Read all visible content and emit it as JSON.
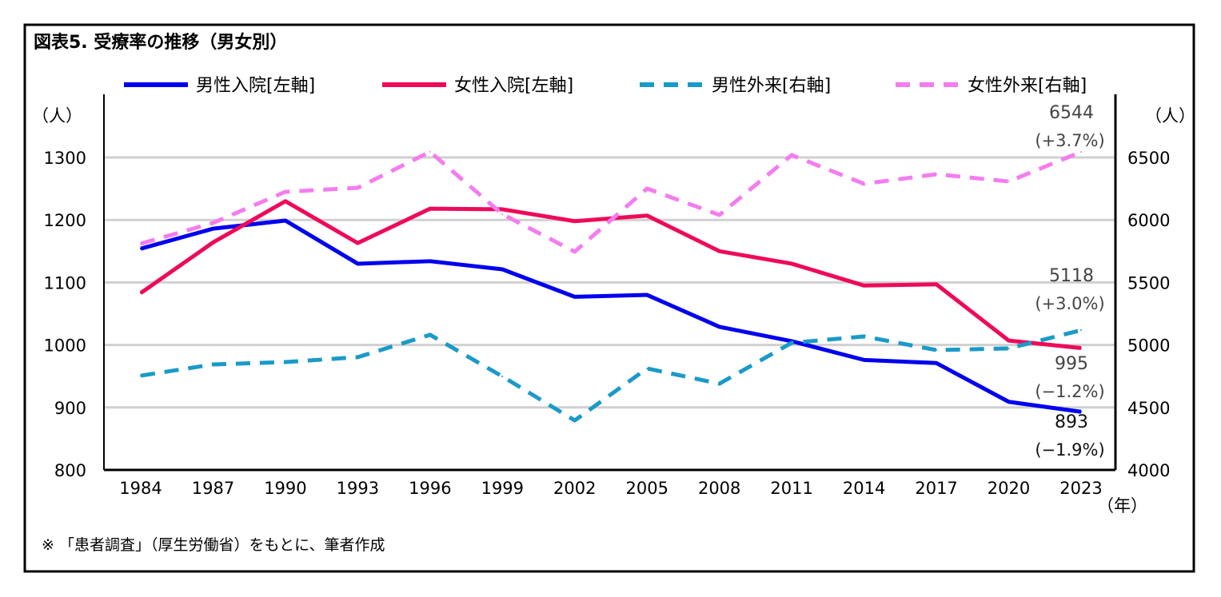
{
  "title": "図表5. 受療率の推移（男女別）",
  "note": "※ 「患者調査」（厚生労働省）をもとに、筆者作成",
  "chart_data": {
    "type": "line",
    "x": [
      "1984",
      "1987",
      "1990",
      "1993",
      "1996",
      "1999",
      "2002",
      "2005",
      "2008",
      "2011",
      "2014",
      "2017",
      "2020",
      "2023"
    ],
    "xlabel_unit": "（年）",
    "ylabel_left": "（人）",
    "ylabel_right": "（人）",
    "ylim_left": [
      800,
      1300
    ],
    "yticks_left": [
      800,
      900,
      1000,
      1100,
      1200,
      1300
    ],
    "ylim_right": [
      4000,
      6500
    ],
    "yticks_right": [
      4000,
      4500,
      5000,
      5500,
      6000,
      6500
    ],
    "grid": true,
    "legend_position": "top",
    "series": [
      {
        "name": "男性入院[左軸]",
        "axis": "left",
        "color": "#0000ee",
        "dashed": false,
        "values": [
          1154,
          1186,
          1199,
          1130,
          1134,
          1121,
          1077,
          1080,
          1029,
          1006,
          976,
          971,
          909,
          893
        ],
        "end_label": "893",
        "end_change": "(−1.9%)"
      },
      {
        "name": "女性入院[左軸]",
        "axis": "left",
        "color": "#ee0a5a",
        "dashed": false,
        "values": [
          1083,
          1164,
          1230,
          1163,
          1218,
          1217,
          1198,
          1207,
          1150,
          1130,
          1095,
          1097,
          1007,
          995
        ],
        "end_label": "995",
        "end_change": "(−1.2%)"
      },
      {
        "name": "男性外来[右軸]",
        "axis": "right",
        "color": "#1a9ac8",
        "dashed": true,
        "values": [
          4754,
          4844,
          4863,
          4902,
          5081,
          4748,
          4396,
          4812,
          4690,
          5017,
          5068,
          4959,
          4972,
          5118
        ],
        "end_label": "5118",
        "end_change": "(+3.0%)"
      },
      {
        "name": "女性外来[右軸]",
        "axis": "right",
        "color": "#f47cf0",
        "dashed": true,
        "values": [
          5810,
          5976,
          6225,
          6257,
          6545,
          6046,
          5746,
          6251,
          6040,
          6519,
          6289,
          6366,
          6308,
          6544
        ],
        "end_label": "6544",
        "end_change": "(+3.7%)"
      }
    ]
  }
}
